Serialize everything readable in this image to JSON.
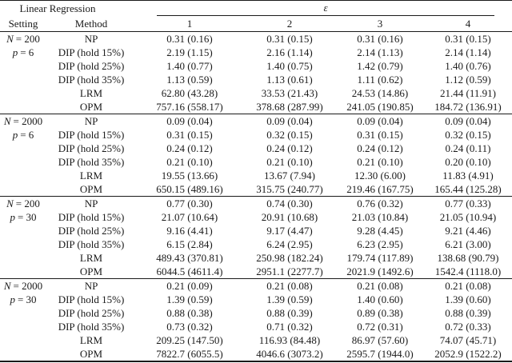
{
  "table": {
    "title": "Linear Regression",
    "epsilon_label": "ε",
    "col_headers": [
      "Setting",
      "Method",
      "1",
      "2",
      "3",
      "4"
    ],
    "blocks": [
      {
        "setting_line1": {
          "var": "N",
          "rest": "= 200"
        },
        "setting_line2": {
          "var": "p",
          "rest": "= 6"
        },
        "rows": [
          {
            "method": "NP",
            "values": [
              "0.31 (0.16)",
              "0.31 (0.15)",
              "0.31 (0.16)",
              "0.31 (0.15)"
            ]
          },
          {
            "method": "DIP (hold 15%)",
            "values": [
              "2.19 (1.15)",
              "2.16 (1.14)",
              "2.14 (1.13)",
              "2.14 (1.14)"
            ]
          },
          {
            "method": "DIP (hold 25%)",
            "values": [
              "1.40 (0.77)",
              "1.40 (0.75)",
              "1.42 (0.79)",
              "1.40 (0.76)"
            ]
          },
          {
            "method": "DIP (hold 35%)",
            "values": [
              "1.13 (0.59)",
              "1.13 (0.61)",
              "1.11 (0.62)",
              "1.12 (0.59)"
            ]
          },
          {
            "method": "LRM",
            "values": [
              "62.80 (43.28)",
              "33.53 (21.43)",
              "24.53 (14.86)",
              "21.44 (11.91)"
            ]
          },
          {
            "method": "OPM",
            "values": [
              "757.16 (558.17)",
              "378.68 (287.99)",
              "241.05 (190.85)",
              "184.72 (136.91)"
            ]
          }
        ]
      },
      {
        "setting_line1": {
          "var": "N",
          "rest": "= 2000"
        },
        "setting_line2": {
          "var": "p",
          "rest": "= 6"
        },
        "rows": [
          {
            "method": "NP",
            "values": [
              "0.09 (0.04)",
              "0.09 (0.04)",
              "0.09 (0.04)",
              "0.09 (0.04)"
            ]
          },
          {
            "method": "DIP (hold 15%)",
            "values": [
              "0.31 (0.15)",
              "0.32 (0.15)",
              "0.31 (0.15)",
              "0.32 (0.15)"
            ]
          },
          {
            "method": "DIP (hold 25%)",
            "values": [
              "0.24 (0.12)",
              "0.24 (0.12)",
              "0.24 (0.12)",
              "0.24 (0.11)"
            ]
          },
          {
            "method": "DIP (hold 35%)",
            "values": [
              "0.21 (0.10)",
              "0.21 (0.10)",
              "0.21 (0.10)",
              "0.20 (0.10)"
            ]
          },
          {
            "method": "LRM",
            "values": [
              "19.55 (13.66)",
              "13.67 (7.94)",
              "12.30 (6.00)",
              "11.83 (4.91)"
            ]
          },
          {
            "method": "OPM",
            "values": [
              "650.15 (489.16)",
              "315.75 (240.77)",
              "219.46 (167.75)",
              "165.44 (125.28)"
            ]
          }
        ]
      },
      {
        "setting_line1": {
          "var": "N",
          "rest": "= 200"
        },
        "setting_line2": {
          "var": "p",
          "rest": "= 30"
        },
        "rows": [
          {
            "method": "NP",
            "values": [
              "0.77 (0.30)",
              "0.74 (0.30)",
              "0.76 (0.32)",
              "0.77 (0.33)"
            ]
          },
          {
            "method": "DIP (hold 15%)",
            "values": [
              "21.07 (10.64)",
              "20.91 (10.68)",
              "21.03 (10.84)",
              "21.05 (10.94)"
            ]
          },
          {
            "method": "DIP (hold 25%)",
            "values": [
              "9.16 (4.41)",
              "9.17 (4.47)",
              "9.28 (4.45)",
              "9.21 (4.46)"
            ]
          },
          {
            "method": "DIP (hold 35%)",
            "values": [
              "6.15 (2.84)",
              "6.24 (2.95)",
              "6.23 (2.95)",
              "6.21 (3.00)"
            ]
          },
          {
            "method": "LRM",
            "values": [
              "489.43 (370.81)",
              "250.98 (182.24)",
              "179.74 (117.89)",
              "138.68 (90.79)"
            ]
          },
          {
            "method": "OPM",
            "values": [
              "6044.5 (4611.4)",
              "2951.1 (2277.7)",
              "2021.9 (1492.6)",
              "1542.4 (1118.0)"
            ]
          }
        ]
      },
      {
        "setting_line1": {
          "var": "N",
          "rest": "= 2000"
        },
        "setting_line2": {
          "var": "p",
          "rest": "= 30"
        },
        "rows": [
          {
            "method": "NP",
            "values": [
              "0.21 (0.09)",
              "0.21 (0.08)",
              "0.21 (0.08)",
              "0.21 (0.08)"
            ]
          },
          {
            "method": "DIP (hold 15%)",
            "values": [
              "1.39 (0.59)",
              "1.39 (0.59)",
              "1.40 (0.60)",
              "1.39 (0.60)"
            ]
          },
          {
            "method": "DIP (hold 25%)",
            "values": [
              "0.88 (0.38)",
              "0.88 (0.39)",
              "0.89 (0.38)",
              "0.88 (0.39)"
            ]
          },
          {
            "method": "DIP (hold 35%)",
            "values": [
              "0.73 (0.32)",
              "0.71 (0.32)",
              "0.72 (0.31)",
              "0.72 (0.33)"
            ]
          },
          {
            "method": "LRM",
            "values": [
              "209.25 (147.50)",
              "116.93 (84.48)",
              "86.97 (57.60)",
              "74.07 (45.71)"
            ]
          },
          {
            "method": "OPM",
            "values": [
              "7822.7 (6055.5)",
              "4046.6 (3073.2)",
              "2595.7 (1944.0)",
              "2052.9 (1522.2)"
            ]
          }
        ]
      }
    ]
  }
}
